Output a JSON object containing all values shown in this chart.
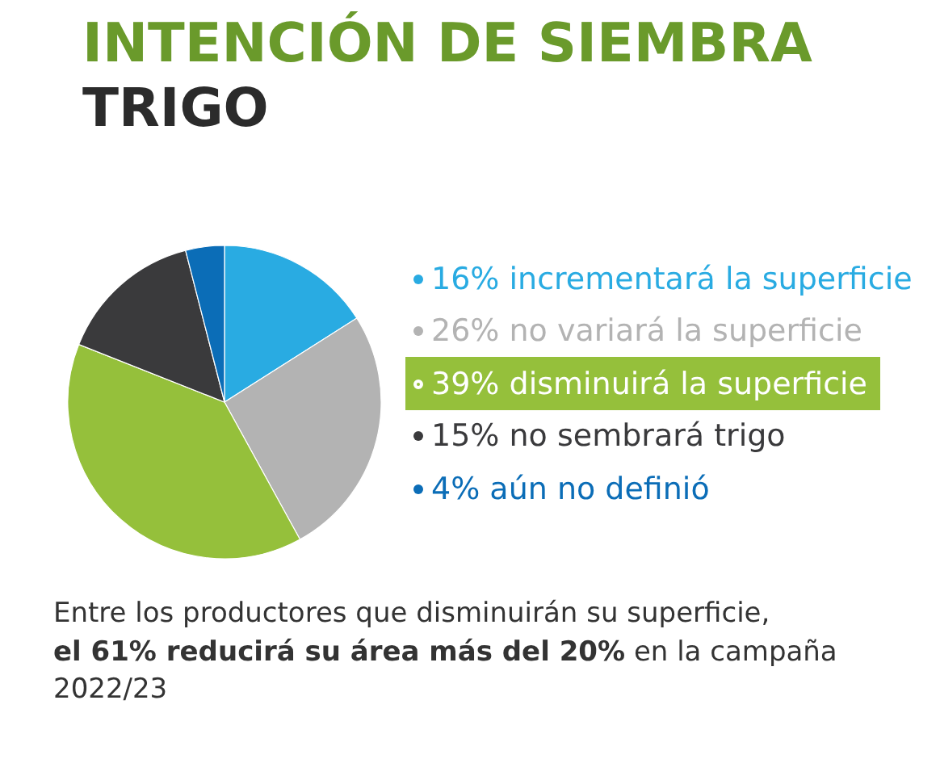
{
  "chart_data": {
    "type": "pie",
    "title": "INTENCIÓN DE SIEMBRA",
    "subtitle": "TRIGO",
    "categories": [
      "incrementará la superficie",
      "no variará la superficie",
      "disminuirá la superficie",
      "no sembrará trigo",
      "aún no definió"
    ],
    "values": [
      16,
      26,
      39,
      15,
      4
    ],
    "value_labels": [
      "16%",
      "26%",
      "39%",
      "15%",
      "4%"
    ],
    "colors": [
      "#29abe2",
      "#b3b3b3",
      "#95c03b",
      "#3a3a3c",
      "#0b6db7"
    ],
    "legend": "right",
    "annotations": [
      "Entre los productores que disminuirán su superficie,",
      "el 61% reducirá su área más del 20%",
      "en la campaña",
      "2022/23"
    ]
  }
}
